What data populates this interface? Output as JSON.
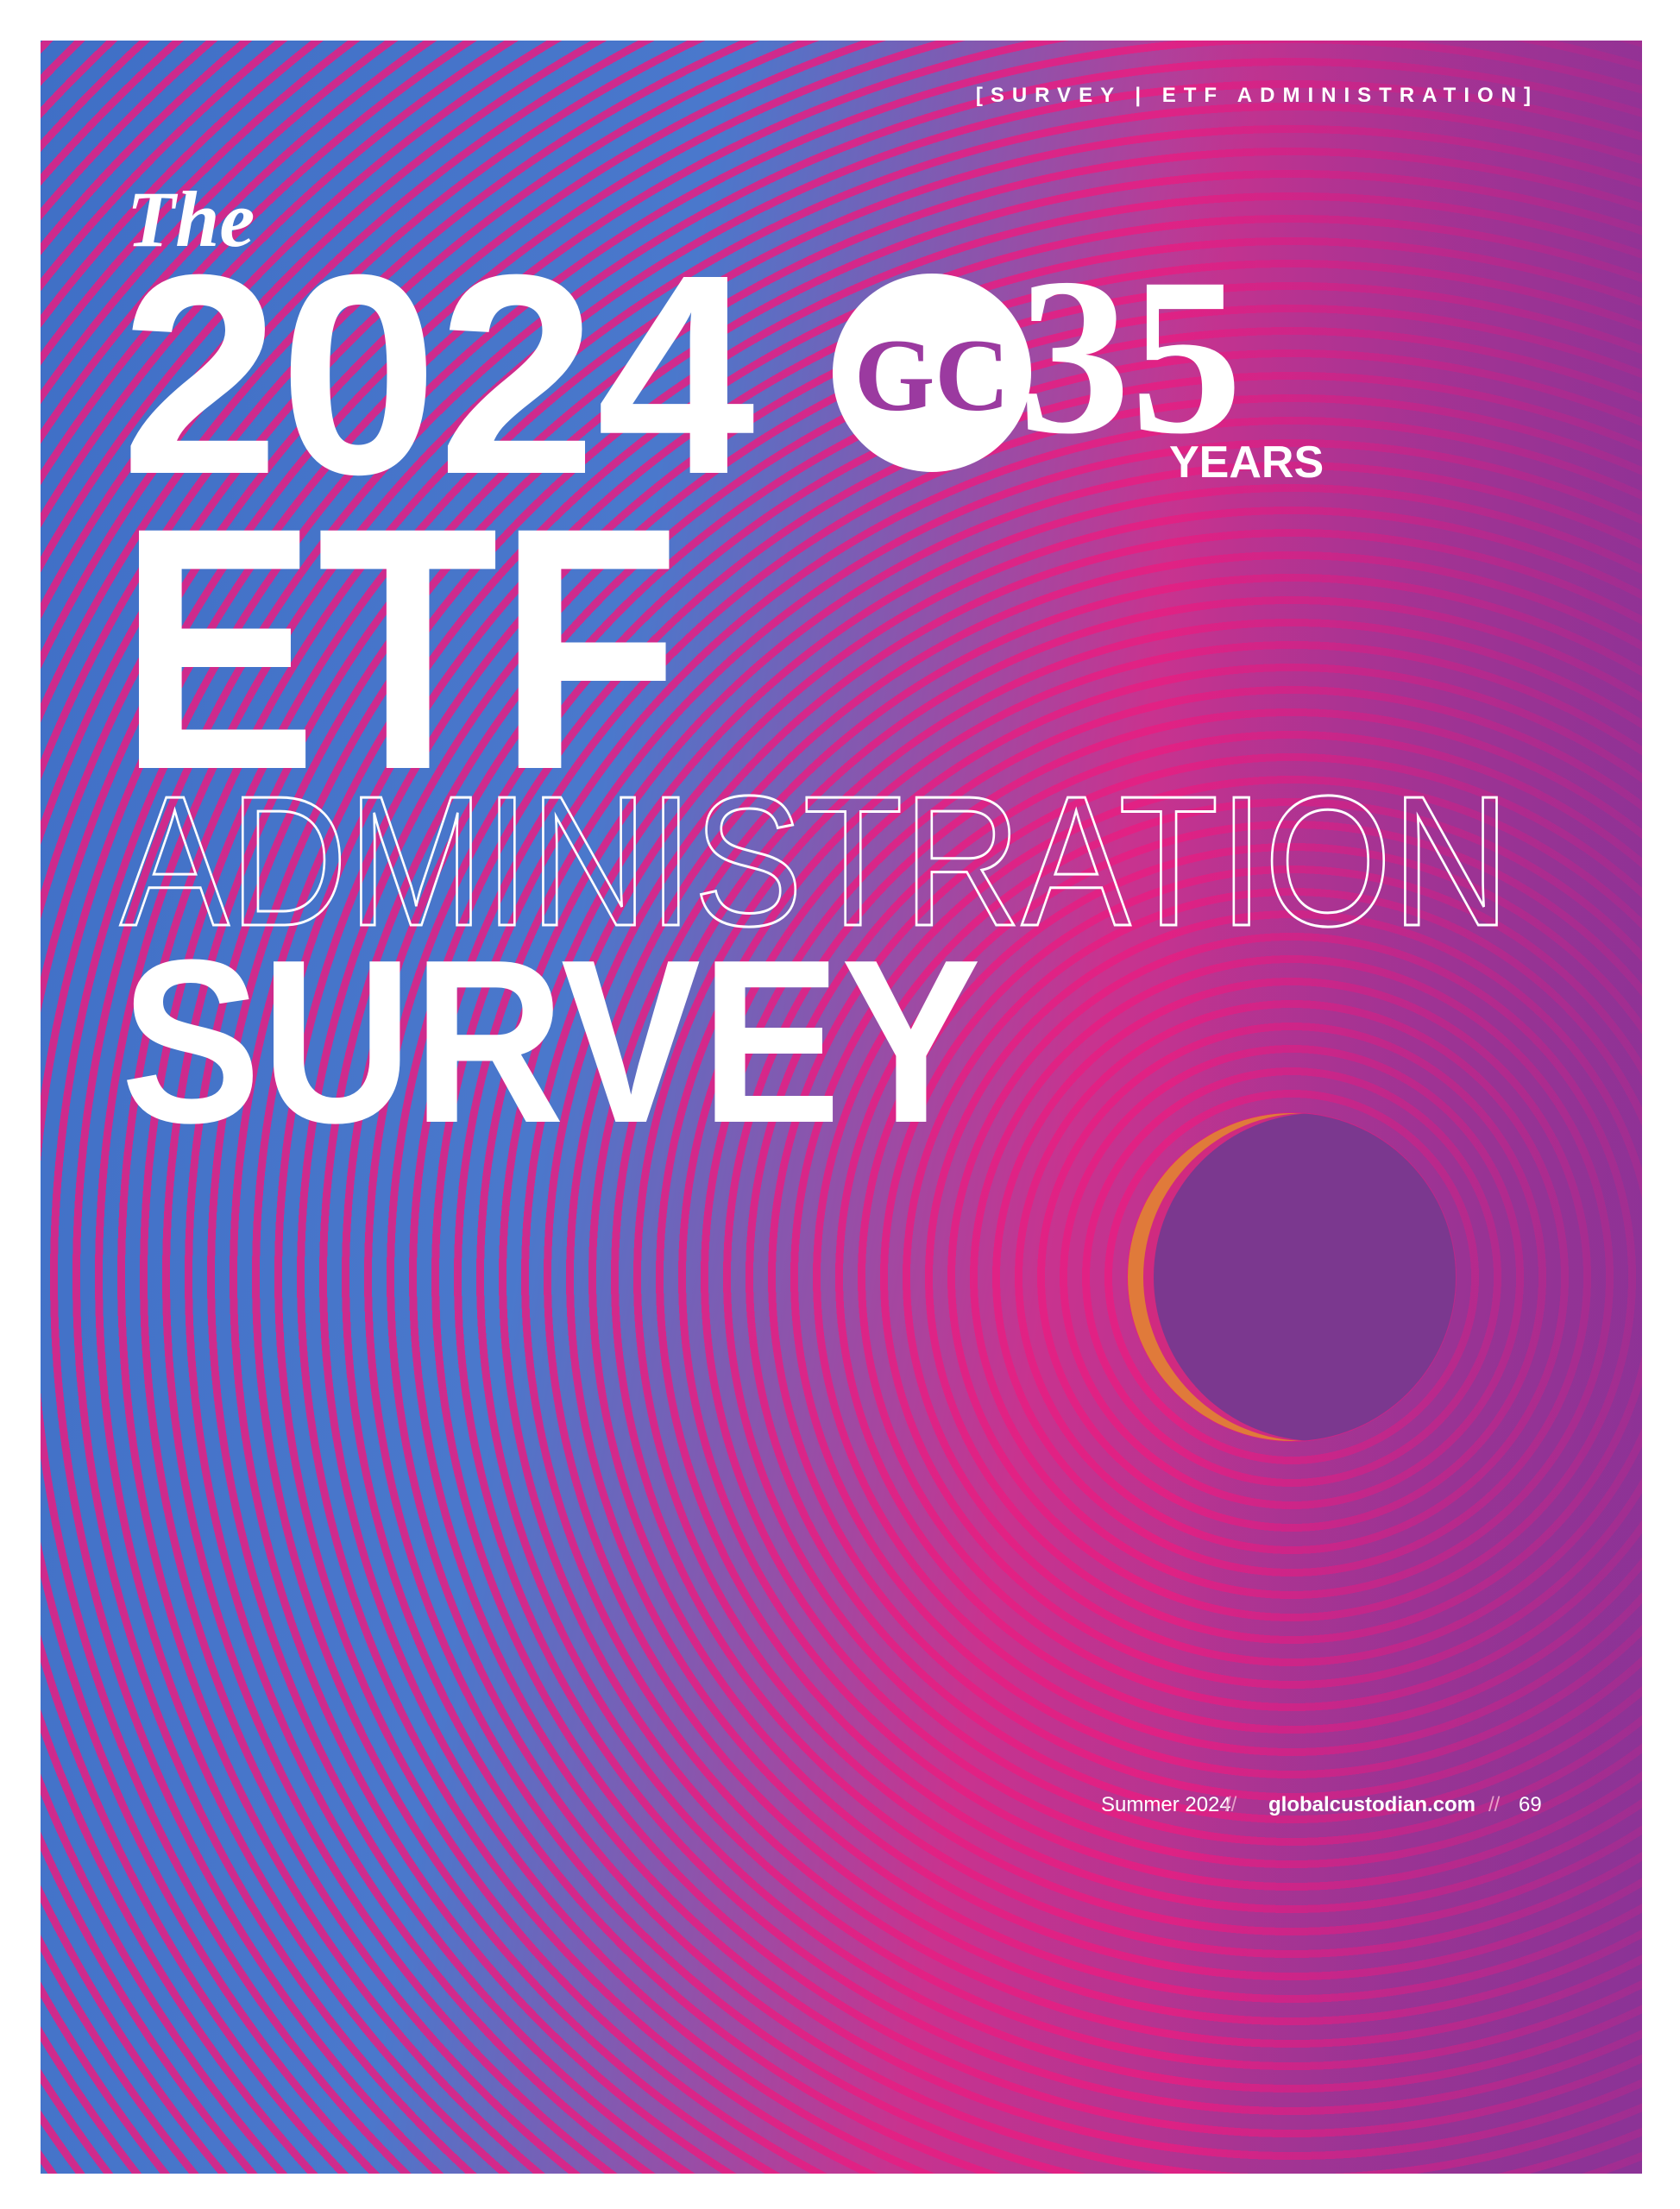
{
  "header": {
    "section_tag": "[SURVEY | ETF ADMINISTRATION]"
  },
  "title": {
    "article": "The",
    "year": "2024",
    "line1": "ETF",
    "line2": "ADMINISTRATION",
    "line3": "SURVEY"
  },
  "logo": {
    "letters": "GC",
    "number": "35",
    "caption": "YEARS"
  },
  "footer": {
    "issue": "Summer 2024",
    "separator1": "//",
    "website": "globalcustodian.com",
    "separator2": "//",
    "page_number": "69"
  }
}
